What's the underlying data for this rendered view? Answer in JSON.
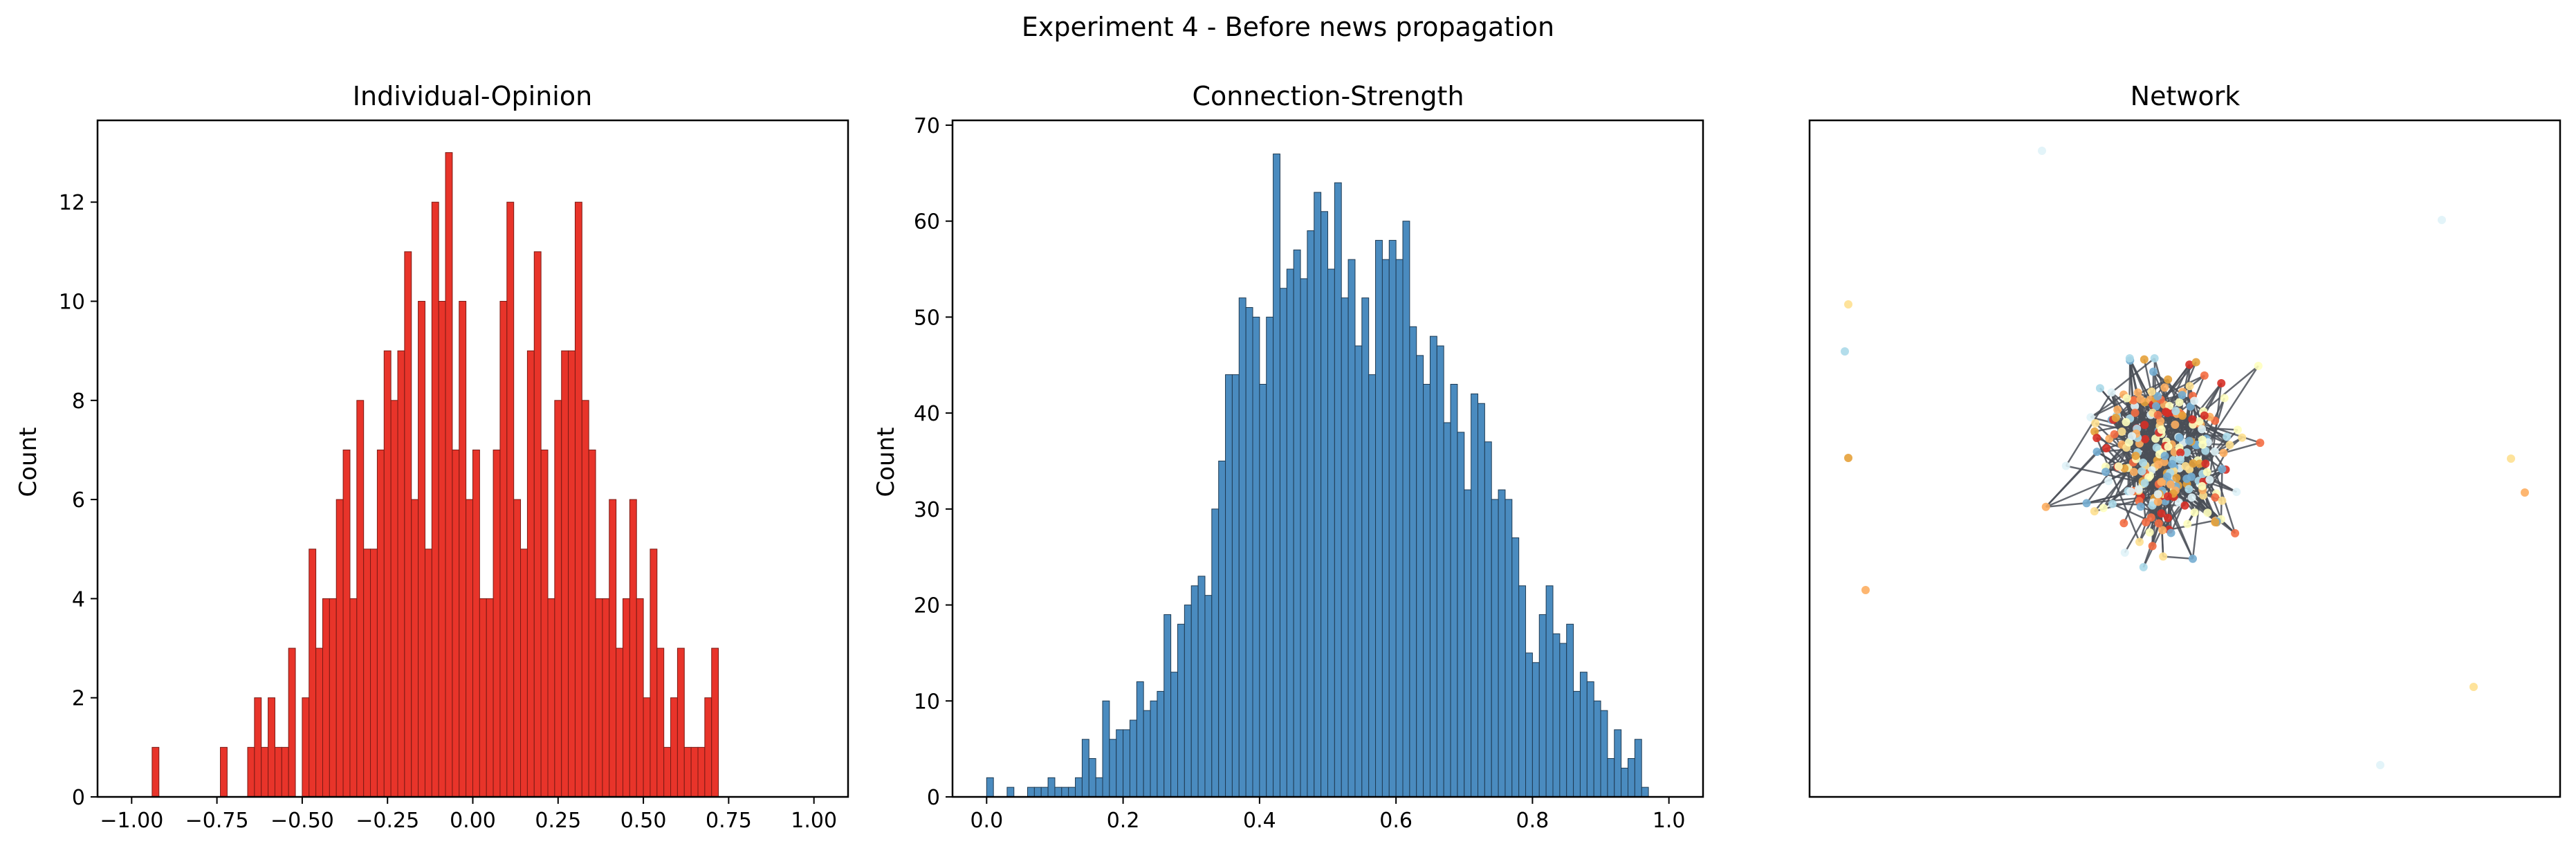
{
  "figure": {
    "suptitle": "Experiment 4 - Before news propagation"
  },
  "chart_data": [
    {
      "type": "bar",
      "kind": "histogram",
      "title": "Individual-Opinion",
      "xlabel": "",
      "ylabel": "Count",
      "xlim": [
        -1.1,
        1.1
      ],
      "ylim": [
        0,
        13.65
      ],
      "xticks": [
        -1.0,
        -0.75,
        -0.5,
        -0.25,
        0.0,
        0.25,
        0.5,
        0.75,
        1.0
      ],
      "xtick_labels": [
        "−1.00",
        "−0.75",
        "−0.50",
        "−0.25",
        "0.00",
        "0.25",
        "0.50",
        "0.75",
        "1.00"
      ],
      "yticks": [
        0,
        2,
        4,
        6,
        8,
        10,
        12
      ],
      "ytick_labels": [
        "0",
        "2",
        "4",
        "6",
        "8",
        "10",
        "12"
      ],
      "bin_start": -1.0,
      "bin_width": 0.02,
      "counts": [
        0,
        0,
        0,
        1,
        0,
        0,
        0,
        0,
        0,
        0,
        0,
        0,
        0,
        1,
        0,
        0,
        0,
        1,
        2,
        1,
        2,
        1,
        1,
        3,
        0,
        2,
        5,
        3,
        4,
        4,
        6,
        7,
        4,
        8,
        5,
        5,
        7,
        9,
        8,
        9,
        11,
        6,
        10,
        5,
        12,
        10,
        13,
        7,
        10,
        6,
        7,
        4,
        4,
        7,
        10,
        12,
        6,
        5,
        9,
        11,
        7,
        4,
        8,
        9,
        9,
        12,
        8,
        7,
        4,
        4,
        6,
        3,
        4,
        6,
        4,
        2,
        5,
        3,
        1,
        2,
        3,
        1,
        1,
        1,
        2,
        3,
        0,
        0,
        0,
        0,
        0,
        0,
        0,
        0,
        0,
        0,
        0,
        0,
        0,
        0
      ],
      "colors": {
        "fill": "#e8342a",
        "edge": "#7a1a14"
      }
    },
    {
      "type": "bar",
      "kind": "histogram",
      "title": "Connection-Strength",
      "xlabel": "",
      "ylabel": "Count",
      "xlim": [
        -0.05,
        1.05
      ],
      "ylim": [
        0,
        70.5
      ],
      "xticks": [
        0.0,
        0.2,
        0.4,
        0.6,
        0.8,
        1.0
      ],
      "xtick_labels": [
        "0.0",
        "0.2",
        "0.4",
        "0.6",
        "0.8",
        "1.0"
      ],
      "yticks": [
        0,
        10,
        20,
        30,
        40,
        50,
        60,
        70
      ],
      "ytick_labels": [
        "0",
        "10",
        "20",
        "30",
        "40",
        "50",
        "60",
        "70"
      ],
      "bin_start": 0.0,
      "bin_width": 0.01,
      "counts": [
        2,
        0,
        0,
        1,
        0,
        0,
        1,
        1,
        1,
        2,
        1,
        1,
        1,
        2,
        6,
        4,
        2,
        10,
        6,
        7,
        7,
        8,
        12,
        9,
        10,
        11,
        19,
        13,
        18,
        20,
        22,
        23,
        21,
        30,
        35,
        44,
        44,
        52,
        51,
        50,
        43,
        50,
        67,
        53,
        55,
        57,
        54,
        59,
        63,
        61,
        55,
        64,
        52,
        56,
        47,
        52,
        44,
        58,
        56,
        58,
        56,
        60,
        49,
        46,
        43,
        48,
        47,
        39,
        43,
        38,
        32,
        42,
        41,
        37,
        31,
        32,
        31,
        27,
        22,
        15,
        14,
        19,
        22,
        17,
        16,
        18,
        11,
        13,
        12,
        10,
        9,
        4,
        7,
        3,
        4,
        6,
        1,
        0,
        0,
        0,
        0,
        0,
        0,
        0,
        0,
        0
      ],
      "colors": {
        "fill": "#4a8bbf",
        "edge": "#1e3a52"
      }
    },
    {
      "type": "scatter",
      "kind": "network",
      "title": "Network",
      "node_count": 260,
      "edge_color": "#4a4f57",
      "palette": [
        "#d73027",
        "#f46d43",
        "#fdae61",
        "#fee090",
        "#ffffbf",
        "#e0f3f8",
        "#abd9e9",
        "#74add1",
        "#e6a13a"
      ]
    }
  ]
}
